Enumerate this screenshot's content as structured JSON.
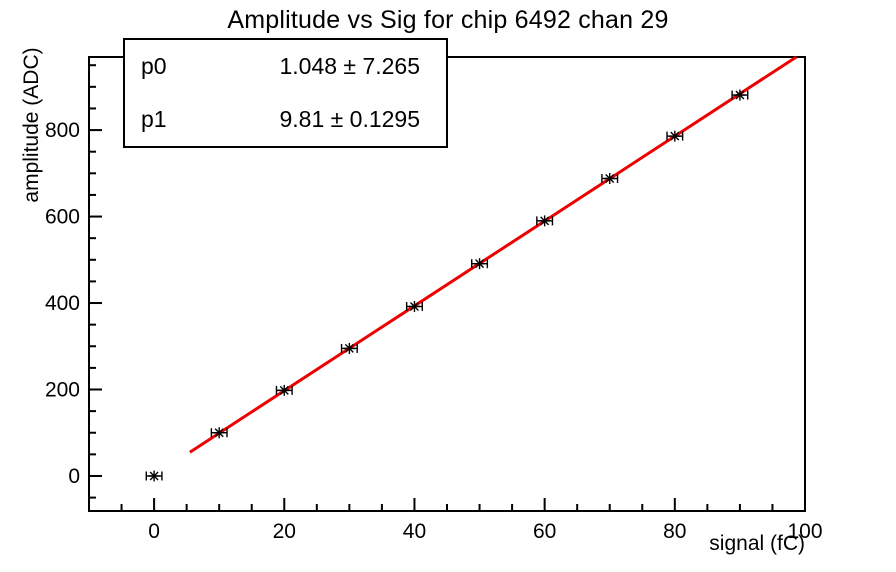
{
  "title": "Amplitude vs Sig for chip 6492 chan 29",
  "stats": {
    "rows": [
      {
        "label": "p0",
        "value": "1.048 ± 7.265"
      },
      {
        "label": "p1",
        "value": "9.81 ± 0.1295"
      }
    ]
  },
  "chart_data": {
    "type": "scatter",
    "title": "Amplitude vs Sig for chip 6492 chan 29",
    "xlabel": "signal (fC)",
    "ylabel": "amplitude (ADC)",
    "xlim": [
      -10,
      100
    ],
    "ylim": [
      -81,
      969
    ],
    "x_major_ticks": [
      0,
      20,
      40,
      60,
      80,
      100
    ],
    "x_minor_step": 5,
    "y_major_ticks": [
      0,
      200,
      400,
      600,
      800
    ],
    "y_minor_step": 50,
    "grid": false,
    "legend": "none",
    "series": [
      {
        "name": "data-points",
        "marker": "asterisk",
        "color": "#000000",
        "x": [
          0,
          10,
          20,
          30,
          40,
          50,
          60,
          70,
          80,
          90
        ],
        "y": [
          0,
          100,
          198,
          295,
          392,
          491,
          590,
          688,
          786,
          881
        ],
        "x_err": 1.2
      }
    ],
    "fit": {
      "name": "linear-fit",
      "p0": 1.048,
      "p1": 9.81,
      "x_start": 5.5,
      "color": "#ee0000"
    }
  }
}
